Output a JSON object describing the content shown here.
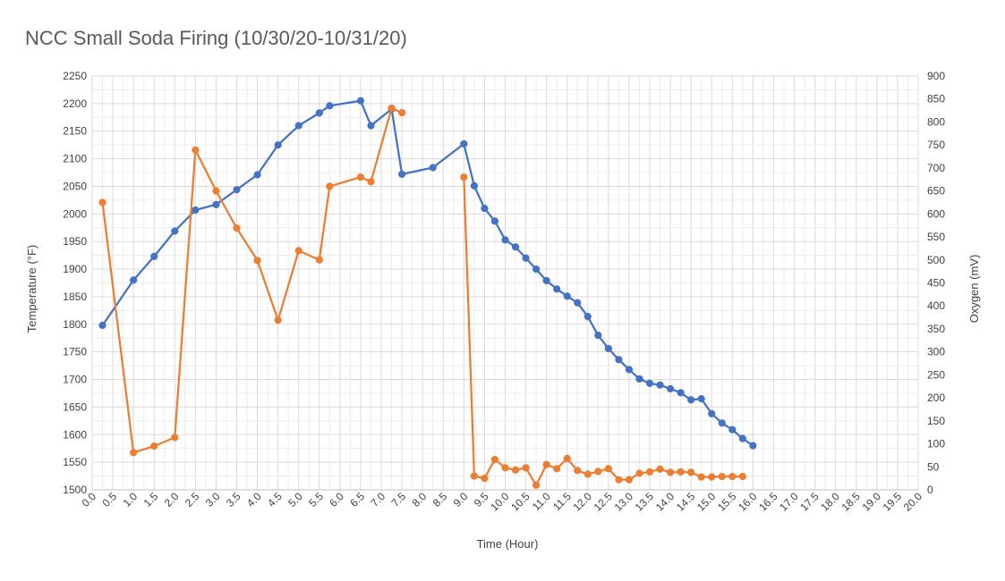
{
  "chart_data": {
    "type": "line",
    "title": "NCC Small Soda Firing (10/30/20-10/31/20)",
    "xlabel": "Time (Hour)",
    "ylabel": "Temperature (°F)",
    "y2label": "Oxygen (mV)",
    "xlim": [
      0,
      20
    ],
    "ylim": [
      1500,
      2250
    ],
    "y2lim": [
      0,
      900
    ],
    "x_ticks": [
      "0.0",
      "0.5",
      "1.0",
      "1.5",
      "2.0",
      "2.5",
      "3.0",
      "3.5",
      "4.0",
      "4.5",
      "5.0",
      "5.5",
      "6.0",
      "6.5",
      "7.0",
      "7.5",
      "8.0",
      "8.5",
      "9.0",
      "9.5",
      "10.0",
      "10.5",
      "11.0",
      "11.5",
      "12.0",
      "12.5",
      "13.0",
      "13.5",
      "14.0",
      "14.5",
      "15.0",
      "15.5",
      "16.0",
      "16.5",
      "17.0",
      "17.5",
      "18.0",
      "18.5",
      "19.0",
      "19.5",
      "20.0"
    ],
    "y_ticks": [
      "1500",
      "1550",
      "1600",
      "1650",
      "1700",
      "1750",
      "1800",
      "1850",
      "1900",
      "1950",
      "2000",
      "2050",
      "2100",
      "2150",
      "2200",
      "2250"
    ],
    "y2_ticks": [
      "0",
      "50",
      "100",
      "150",
      "200",
      "250",
      "300",
      "350",
      "400",
      "450",
      "500",
      "550",
      "600",
      "650",
      "700",
      "750",
      "800",
      "850",
      "900"
    ],
    "grid": true,
    "legend": "none",
    "series": [
      {
        "color": "#4472C4",
        "axis": "left",
        "points": [
          [
            0.25,
            1798
          ],
          [
            1.0,
            1880
          ],
          [
            1.5,
            1923
          ],
          [
            2.0,
            1969
          ],
          [
            2.5,
            2007
          ],
          [
            3.0,
            2017
          ],
          [
            3.5,
            2044
          ],
          [
            4.0,
            2071
          ],
          [
            4.5,
            2125
          ],
          [
            5.0,
            2160
          ],
          [
            5.5,
            2183
          ],
          [
            5.75,
            2196
          ],
          [
            6.5,
            2205
          ],
          [
            6.75,
            2160
          ],
          [
            7.25,
            2190
          ],
          [
            7.5,
            2072
          ],
          [
            8.25,
            2084
          ],
          [
            9.0,
            2127
          ],
          [
            9.25,
            2051
          ],
          [
            9.5,
            2010
          ],
          [
            9.75,
            1987
          ],
          [
            10.0,
            1953
          ],
          [
            10.25,
            1940
          ],
          [
            10.5,
            1920
          ],
          [
            10.75,
            1900
          ],
          [
            11.0,
            1879
          ],
          [
            11.25,
            1864
          ],
          [
            11.5,
            1851
          ],
          [
            11.75,
            1839
          ],
          [
            12.0,
            1814
          ],
          [
            12.25,
            1780
          ],
          [
            12.5,
            1756
          ],
          [
            12.75,
            1736
          ],
          [
            13.0,
            1718
          ],
          [
            13.25,
            1701
          ],
          [
            13.5,
            1693
          ],
          [
            13.75,
            1690
          ],
          [
            14.0,
            1683
          ],
          [
            14.25,
            1676
          ],
          [
            14.5,
            1663
          ],
          [
            14.75,
            1665
          ],
          [
            15.0,
            1638
          ],
          [
            15.25,
            1621
          ],
          [
            15.5,
            1609
          ],
          [
            15.75,
            1593
          ],
          [
            16.0,
            1580
          ]
        ]
      },
      {
        "color": "#ED7D31",
        "axis": "right",
        "segments": [
          [
            [
              0.25,
              625
            ],
            [
              1.0,
              81
            ],
            [
              1.5,
              95
            ],
            [
              2.0,
              114
            ],
            [
              2.5,
              739
            ],
            [
              3.0,
              650
            ],
            [
              3.5,
              569
            ],
            [
              4.0,
              499
            ],
            [
              4.5,
              369
            ],
            [
              5.0,
              520
            ],
            [
              5.5,
              500
            ],
            [
              5.75,
              660
            ],
            [
              6.5,
              680
            ],
            [
              6.75,
              670
            ],
            [
              7.25,
              830
            ],
            [
              7.5,
              820
            ]
          ],
          [
            [
              9.0,
              680
            ],
            [
              9.25,
              30
            ],
            [
              9.5,
              25
            ],
            [
              9.75,
              66
            ],
            [
              10.0,
              48
            ],
            [
              10.25,
              43
            ],
            [
              10.5,
              48
            ],
            [
              10.75,
              10
            ],
            [
              11.0,
              55
            ],
            [
              11.25,
              46
            ],
            [
              11.5,
              68
            ],
            [
              11.75,
              42
            ],
            [
              12.0,
              34
            ],
            [
              12.25,
              40
            ],
            [
              12.5,
              46
            ],
            [
              12.75,
              22
            ],
            [
              13.0,
              22
            ],
            [
              13.25,
              36
            ],
            [
              13.5,
              39
            ],
            [
              13.75,
              45
            ],
            [
              14.0,
              38
            ],
            [
              14.25,
              39
            ],
            [
              14.5,
              38
            ],
            [
              14.75,
              28
            ],
            [
              15.0,
              28
            ],
            [
              15.25,
              29
            ],
            [
              15.5,
              29
            ],
            [
              15.75,
              29
            ]
          ]
        ]
      }
    ]
  }
}
